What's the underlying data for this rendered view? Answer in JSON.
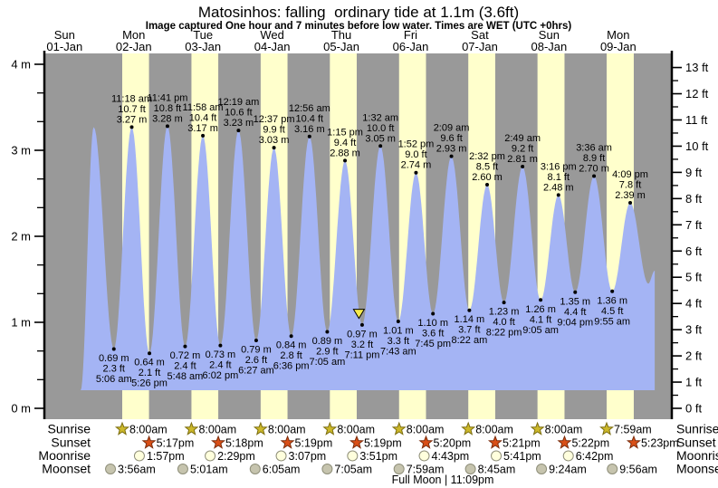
{
  "header": {
    "title": "Matosinhos: falling  ordinary tide at 1.1m (3.6ft)",
    "subtitle": "Image captured One hour and 7 minutes before low water. Times are WET (UTC +0hrs)"
  },
  "days": [
    {
      "dow": "Sun",
      "date": "01-Jan"
    },
    {
      "dow": "Mon",
      "date": "02-Jan"
    },
    {
      "dow": "Tue",
      "date": "03-Jan"
    },
    {
      "dow": "Wed",
      "date": "04-Jan"
    },
    {
      "dow": "Thu",
      "date": "05-Jan"
    },
    {
      "dow": "Fri",
      "date": "06-Jan"
    },
    {
      "dow": "Sat",
      "date": "07-Jan"
    },
    {
      "dow": "Sun",
      "date": "08-Jan"
    },
    {
      "dow": "Mon",
      "date": "09-Jan"
    }
  ],
  "y_axis": {
    "meter_labels": [
      "0 m",
      "1 m",
      "2 m",
      "3 m",
      "4 m"
    ],
    "feet_labels": [
      "0 ft",
      "1 ft",
      "2 ft",
      "3 ft",
      "4 ft",
      "5 ft",
      "6 ft",
      "7 ft",
      "8 ft",
      "9 ft",
      "10 ft",
      "11 ft",
      "12 ft",
      "13 ft"
    ]
  },
  "chart_data": {
    "type": "area",
    "title": "Matosinhos: falling ordinary tide at 1.1m (3.6ft)",
    "ylabel_left": "meters",
    "ylabel_right": "feet",
    "ylim_m": [
      0,
      4
    ],
    "ylim_ft": [
      0,
      13
    ],
    "tide_extremes": [
      {
        "type": "edge",
        "day": 0,
        "t": 17.6,
        "m_val": 0.21
      },
      {
        "type": "high",
        "day": 0,
        "t": 22.1,
        "m_val": 3.27,
        "unlabeled": true
      },
      {
        "type": "low",
        "day": 1,
        "time": "5:06 am",
        "ft": "2.3 ft",
        "m": "0.69 m"
      },
      {
        "type": "high",
        "day": 1,
        "time": "11:18 am",
        "ft": "10.7 ft",
        "m": "3.27 m"
      },
      {
        "type": "low",
        "day": 1,
        "time": "5:26 pm",
        "ft": "2.1 ft",
        "m": "0.64 m"
      },
      {
        "type": "high",
        "day": 1,
        "time": "11:41 pm",
        "ft": "10.8 ft",
        "m": "3.28 m"
      },
      {
        "type": "low",
        "day": 2,
        "time": "5:48 am",
        "ft": "2.4 ft",
        "m": "0.72 m"
      },
      {
        "type": "high",
        "day": 2,
        "time": "11:58 am",
        "ft": "10.4 ft",
        "m": "3.17 m"
      },
      {
        "type": "low",
        "day": 2,
        "time": "6:02 pm",
        "ft": "2.4 ft",
        "m": "0.73 m"
      },
      {
        "type": "high",
        "day": 3,
        "time": "12:19 am",
        "ft": "10.6 ft",
        "m": "3.23 m"
      },
      {
        "type": "low",
        "day": 3,
        "time": "6:27 am",
        "ft": "2.6 ft",
        "m": "0.79 m"
      },
      {
        "type": "high",
        "day": 3,
        "time": "12:37 pm",
        "ft": "9.9 ft",
        "m": "3.03 m"
      },
      {
        "type": "low",
        "day": 3,
        "time": "6:36 pm",
        "ft": "2.8 ft",
        "m": "0.84 m"
      },
      {
        "type": "high",
        "day": 4,
        "time": "12:56 am",
        "ft": "10.4 ft",
        "m": "3.16 m"
      },
      {
        "type": "low",
        "day": 4,
        "time": "7:05 am",
        "ft": "2.9 ft",
        "m": "0.89 m"
      },
      {
        "type": "high",
        "day": 4,
        "time": "1:15 pm",
        "ft": "9.4 ft",
        "m": "2.88 m"
      },
      {
        "type": "low",
        "day": 4,
        "time": "7:11 pm",
        "ft": "3.2 ft",
        "m": "0.97 m"
      },
      {
        "type": "high",
        "day": 5,
        "time": "1:32 am",
        "ft": "10.0 ft",
        "m": "3.05 m"
      },
      {
        "type": "low",
        "day": 5,
        "time": "7:43 am",
        "ft": "3.3 ft",
        "m": "1.01 m"
      },
      {
        "type": "high",
        "day": 5,
        "time": "1:52 pm",
        "ft": "9.0 ft",
        "m": "2.74 m"
      },
      {
        "type": "low",
        "day": 5,
        "time": "7:45 pm",
        "ft": "3.6 ft",
        "m": "1.10 m"
      },
      {
        "type": "high",
        "day": 6,
        "time": "2:09 am",
        "ft": "9.6 ft",
        "m": "2.93 m"
      },
      {
        "type": "low",
        "day": 6,
        "time": "8:22 am",
        "ft": "3.7 ft",
        "m": "1.14 m"
      },
      {
        "type": "high",
        "day": 6,
        "time": "2:32 pm",
        "ft": "8.5 ft",
        "m": "2.60 m"
      },
      {
        "type": "low",
        "day": 6,
        "time": "8:22 pm",
        "ft": "4.0 ft",
        "m": "1.23 m"
      },
      {
        "type": "high",
        "day": 7,
        "time": "2:49 am",
        "ft": "9.2 ft",
        "m": "2.81 m"
      },
      {
        "type": "low",
        "day": 7,
        "time": "9:05 am",
        "ft": "4.1 ft",
        "m": "1.26 m"
      },
      {
        "type": "high",
        "day": 7,
        "time": "3:16 pm",
        "ft": "8.1 ft",
        "m": "2.48 m"
      },
      {
        "type": "low",
        "day": 7,
        "time": "9:04 pm",
        "ft": "4.4 ft",
        "m": "1.35 m"
      },
      {
        "type": "high",
        "day": 8,
        "time": "3:36 am",
        "ft": "8.9 ft",
        "m": "2.70 m"
      },
      {
        "type": "low",
        "day": 8,
        "time": "9:55 am",
        "ft": "4.5 ft",
        "m": "1.36 m"
      },
      {
        "type": "high",
        "day": 8,
        "time": "4:09 pm",
        "ft": "7.8 ft",
        "m": "2.39 m"
      },
      {
        "type": "edge",
        "day": 8,
        "t": 22.4,
        "m_val": 1.45
      },
      {
        "type": "edge",
        "day": 8,
        "t": 24.65,
        "m_val": 1.6
      }
    ],
    "current_marker": {
      "day": 4,
      "t": 18.07,
      "m_val": 1.12
    }
  },
  "sun_moon": {
    "rows": [
      {
        "key": "sunrise",
        "label": "Sunrise",
        "entries": [
          {
            "day": 1,
            "time": "8:00am"
          },
          {
            "day": 2,
            "time": "8:00am"
          },
          {
            "day": 3,
            "time": "8:00am"
          },
          {
            "day": 4,
            "time": "8:00am"
          },
          {
            "day": 5,
            "time": "8:00am"
          },
          {
            "day": 6,
            "time": "8:00am"
          },
          {
            "day": 7,
            "time": "8:00am"
          },
          {
            "day": 8,
            "time": "7:59am"
          }
        ]
      },
      {
        "key": "sunset",
        "label": "Sunset",
        "entries": [
          {
            "day": 1,
            "time": "5:17pm"
          },
          {
            "day": 2,
            "time": "5:18pm"
          },
          {
            "day": 3,
            "time": "5:19pm"
          },
          {
            "day": 4,
            "time": "5:19pm"
          },
          {
            "day": 5,
            "time": "5:20pm"
          },
          {
            "day": 6,
            "time": "5:21pm"
          },
          {
            "day": 7,
            "time": "5:22pm"
          },
          {
            "day": 8,
            "time": "5:23pm"
          }
        ]
      },
      {
        "key": "moonrise",
        "label": "Moonrise",
        "entries": [
          {
            "day": 1,
            "time": "1:57pm"
          },
          {
            "day": 2,
            "time": "2:29pm"
          },
          {
            "day": 3,
            "time": "3:07pm"
          },
          {
            "day": 4,
            "time": "3:51pm"
          },
          {
            "day": 5,
            "time": "4:43pm"
          },
          {
            "day": 6,
            "time": "5:41pm"
          },
          {
            "day": 7,
            "time": "6:42pm"
          }
        ]
      },
      {
        "key": "moonset",
        "label": "Moonset",
        "entries": [
          {
            "day": 1,
            "time": "3:56am"
          },
          {
            "day": 2,
            "time": "5:01am"
          },
          {
            "day": 3,
            "time": "6:05am"
          },
          {
            "day": 4,
            "time": "7:05am"
          },
          {
            "day": 5,
            "time": "7:59am"
          },
          {
            "day": 6,
            "time": "8:45am"
          },
          {
            "day": 7,
            "time": "9:24am"
          },
          {
            "day": 8,
            "time": "9:56am"
          }
        ]
      }
    ],
    "full_moon": {
      "text": "Full Moon | 11:09pm",
      "day": 5,
      "time": "11:09pm"
    }
  },
  "colors": {
    "night_band": "#999999",
    "daylight_band": "#ffffcc",
    "water": "#a4b4f4",
    "day_label": "#e8491f",
    "axis": "#000000",
    "sunrise_star": "#ccb82a",
    "sunrise_star_edge": "#7c6e10",
    "sunset_star": "#d94f17",
    "sunset_star_edge": "#7c2d0c",
    "moonrise_moon": "#ffffdd",
    "moonset_moon": "#c6c4ae",
    "moon_edge": "#8f8f7a",
    "marker_fill": "#f5ea4c",
    "marker_edge": "#000000"
  }
}
